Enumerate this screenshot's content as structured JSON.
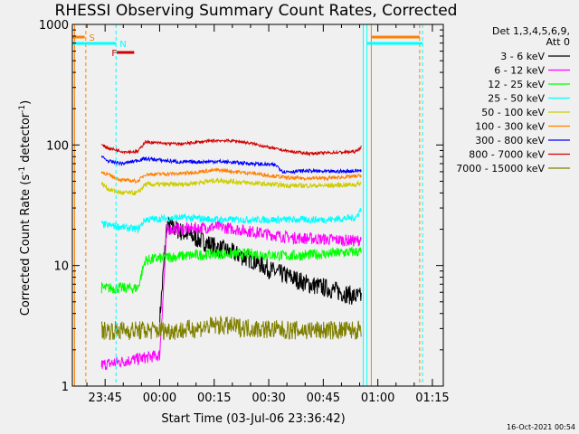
{
  "chart_data": {
    "type": "line",
    "title": "RHESSI Observing Summary Count Rates, Corrected",
    "xlabel": "Start Time (03-Jul-06 23:36:42)",
    "ylabel": "Corrected Count Rate (s⁻¹ detector⁻¹)",
    "ylabel_parts": [
      "Corrected Count Rate (s",
      "-1",
      " detector",
      "-1",
      ")"
    ],
    "y_scale": "log",
    "ylim": [
      1,
      1000
    ],
    "xlim_minutes_after_2336": [
      0,
      102
    ],
    "x_tick_labels": [
      "23:45",
      "00:00",
      "00:15",
      "00:30",
      "00:45",
      "01:00",
      "01:15"
    ],
    "x_tick_minutes": [
      9,
      24,
      39,
      54,
      69,
      84,
      99
    ],
    "y_tick_labels": [
      "1",
      "10",
      "100",
      "1000"
    ],
    "y_tick_values": [
      1,
      10,
      100,
      1000
    ],
    "grid": false,
    "legend_position": "right",
    "legend_header": [
      "Det 1,3,4,5,6,9,",
      "Att 0"
    ],
    "series": [
      {
        "name": "3 - 6 keV",
        "color": "#000000",
        "x": [
          24,
          26,
          30,
          40,
          50,
          55,
          60,
          65,
          70,
          78,
          79.5
        ],
        "y": [
          3.5,
          22,
          19,
          14,
          11,
          9,
          8,
          7,
          6.5,
          5.5,
          5.5
        ]
      },
      {
        "name": "6 - 12 keV",
        "color": "#ff00ff",
        "x": [
          8,
          24,
          26,
          30,
          40,
          50,
          60,
          70,
          78,
          79.5
        ],
        "y": [
          1.5,
          1.8,
          20,
          20,
          21,
          19,
          17,
          16.5,
          16,
          16.5
        ]
      },
      {
        "name": "12 - 25 keV",
        "color": "#00ff00",
        "x": [
          8,
          18,
          20,
          24,
          30,
          40,
          50,
          60,
          70,
          78,
          79.5
        ],
        "y": [
          6.5,
          6.5,
          11,
          11.5,
          12,
          12.5,
          12.5,
          12,
          12.5,
          13,
          13
        ]
      },
      {
        "name": "25 - 50 keV",
        "color": "#00ffff",
        "x": [
          8,
          18,
          20,
          30,
          40,
          50,
          60,
          70,
          78,
          79.5
        ],
        "y": [
          22,
          20,
          24,
          25,
          24,
          24,
          24,
          24,
          25,
          30
        ]
      },
      {
        "name": "50 - 100 keV",
        "color": "#cccc00",
        "x": [
          8,
          10,
          12,
          14,
          18,
          20,
          30,
          40,
          50,
          55,
          60,
          70,
          78,
          79.5
        ],
        "y": [
          48,
          43,
          41,
          40,
          40,
          47,
          47,
          51,
          48,
          47,
          46,
          46,
          47,
          48
        ]
      },
      {
        "name": "100 - 300 keV",
        "color": "#ff8000",
        "x": [
          8,
          12,
          14,
          18,
          20,
          30,
          40,
          50,
          60,
          70,
          78,
          79.5
        ],
        "y": [
          60,
          53,
          51,
          50,
          57,
          58,
          62,
          58,
          53,
          53,
          55,
          56
        ]
      },
      {
        "name": "300 - 800 keV",
        "color": "#0000ff",
        "x": [
          8,
          10,
          14,
          20,
          30,
          40,
          50,
          56,
          58,
          65,
          70,
          78,
          79.5
        ],
        "y": [
          80,
          73,
          70,
          77,
          72,
          73,
          70,
          68,
          60,
          61,
          60,
          61,
          62
        ]
      },
      {
        "name": "800 - 7000 keV",
        "color": "#d00000",
        "x": [
          8,
          10,
          14,
          18,
          20,
          25,
          30,
          35,
          40,
          45,
          50,
          55,
          60,
          65,
          70,
          78,
          79.5
        ],
        "y": [
          100,
          94,
          88,
          88,
          106,
          103,
          102,
          106,
          109,
          108,
          102,
          94,
          88,
          85,
          86,
          88,
          97
        ]
      },
      {
        "name": "7000 - 15000 keV",
        "color": "#808000",
        "x": [
          8,
          20,
          30,
          40,
          50,
          60,
          70,
          79.5
        ],
        "y": [
          2.9,
          2.9,
          2.9,
          3.2,
          3.0,
          2.9,
          2.9,
          2.9
        ]
      }
    ],
    "annotations": [
      {
        "label": "S",
        "color": "#ff8000"
      },
      {
        "label": "N",
        "color": "#00ffff"
      },
      {
        "label": "F",
        "color": "#d00000"
      }
    ]
  },
  "timestamp": "16-Oct-2021 00:54"
}
